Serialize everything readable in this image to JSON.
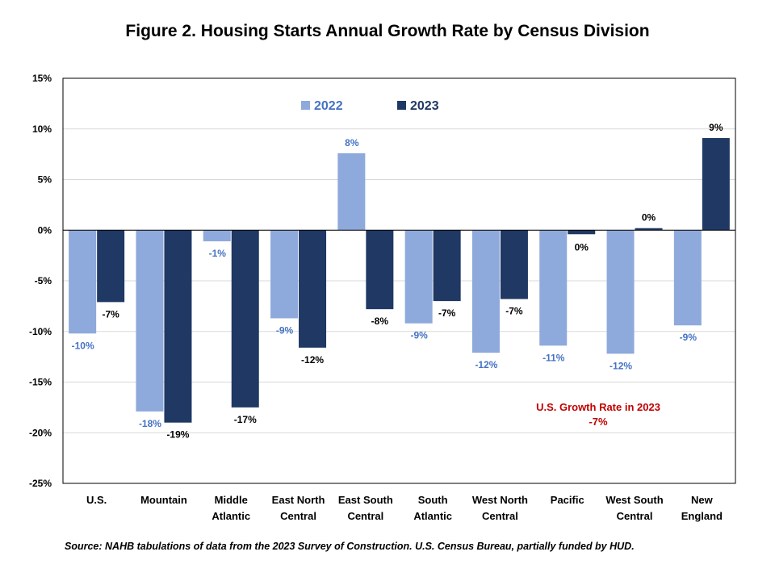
{
  "figure": {
    "title": "Figure 2. Housing Starts Annual Growth Rate by Census Division",
    "source": "Source: NAHB tabulations of data from the 2023 Survey of Construction. U.S. Census Bureau, partially funded by HUD.",
    "annotation": {
      "line1": "U.S. Growth Rate in 2023",
      "line2": "-7%",
      "color": "#C00000"
    }
  },
  "chart_data": {
    "type": "bar",
    "categories": [
      [
        "U.S."
      ],
      [
        "Mountain"
      ],
      [
        "Middle",
        "Atlantic"
      ],
      [
        "East North",
        "Central"
      ],
      [
        "East South",
        "Central"
      ],
      [
        "South",
        "Atlantic"
      ],
      [
        "West North",
        "Central"
      ],
      [
        "Pacific"
      ],
      [
        "West South",
        "Central"
      ],
      [
        "New",
        "England"
      ]
    ],
    "series": [
      {
        "name": "2022",
        "color": "#8EA9DB",
        "label_color": "#4472C4",
        "values": [
          -10.2,
          -17.9,
          -1.1,
          -8.7,
          7.6,
          -9.2,
          -12.1,
          -11.4,
          -12.2,
          -9.4
        ],
        "labels": [
          "-10%",
          "-18%",
          "-1%",
          "-9%",
          "8%",
          "-9%",
          "-12%",
          "-11%",
          "-12%",
          "-9%"
        ]
      },
      {
        "name": "2023",
        "color": "#1F3864",
        "label_color": "#000000",
        "values": [
          -7.1,
          -19.0,
          -17.5,
          -11.6,
          -7.8,
          -7.0,
          -6.8,
          -0.4,
          0.2,
          9.1
        ],
        "labels": [
          "-7%",
          "-19%",
          "-17%",
          "-12%",
          "-8%",
          "-7%",
          "-7%",
          "0%",
          "0%",
          "9%"
        ]
      }
    ],
    "ylim": [
      -25,
      15
    ],
    "yticks": [
      15,
      10,
      5,
      0,
      -5,
      -10,
      -15,
      -20,
      -25
    ],
    "ytick_labels": [
      "15%",
      "10%",
      "5%",
      "0%",
      "-5%",
      "-10%",
      "-15%",
      "-20%",
      "-25%"
    ],
    "grid": true,
    "legend": "top-center"
  }
}
